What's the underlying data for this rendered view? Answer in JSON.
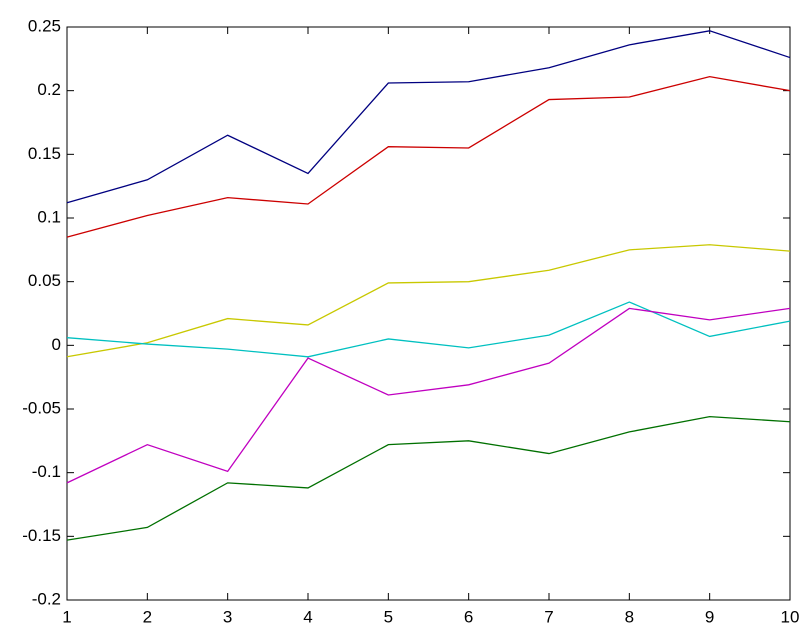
{
  "chart_data": {
    "type": "line",
    "x": [
      1,
      2,
      3,
      4,
      5,
      6,
      7,
      8,
      9,
      10
    ],
    "xlim": [
      1,
      10
    ],
    "xticks": [
      1,
      2,
      3,
      4,
      5,
      6,
      7,
      8,
      9,
      10
    ],
    "ylim": [
      -0.2,
      0.25
    ],
    "yticks": [
      -0.2,
      -0.15,
      -0.1,
      -0.05,
      0,
      0.05,
      0.1,
      0.15,
      0.2,
      0.25
    ],
    "grid": false,
    "series": [
      {
        "color": "#000080",
        "values": [
          0.112,
          0.13,
          0.165,
          0.135,
          0.206,
          0.207,
          0.218,
          0.236,
          0.247,
          0.226
        ]
      },
      {
        "color": "#cc0000",
        "values": [
          0.085,
          0.102,
          0.116,
          0.111,
          0.156,
          0.155,
          0.193,
          0.195,
          0.211,
          0.2
        ]
      },
      {
        "color": "#c8c800",
        "values": [
          -0.009,
          0.002,
          0.021,
          0.016,
          0.049,
          0.05,
          0.059,
          0.075,
          0.079,
          0.074
        ]
      },
      {
        "color": "#00c0c0",
        "values": [
          0.006,
          0.001,
          -0.003,
          -0.009,
          0.005,
          -0.002,
          0.008,
          0.034,
          0.007,
          0.019
        ]
      },
      {
        "color": "#c000c0",
        "values": [
          -0.108,
          -0.078,
          -0.099,
          -0.01,
          -0.039,
          -0.031,
          -0.014,
          0.029,
          0.02,
          0.029
        ]
      },
      {
        "color": "#007000",
        "values": [
          -0.153,
          -0.143,
          -0.108,
          -0.112,
          -0.078,
          -0.075,
          -0.085,
          -0.068,
          -0.056,
          -0.06
        ]
      }
    ]
  }
}
